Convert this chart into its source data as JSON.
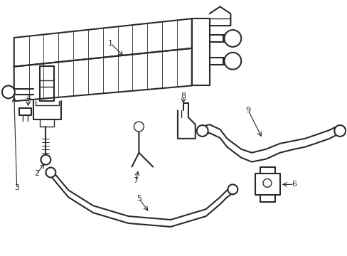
{
  "background_color": "#ffffff",
  "line_color": "#2a2a2a",
  "line_width": 1.0,
  "fig_width": 4.89,
  "fig_height": 3.6,
  "dpi": 100,
  "label_fontsize": 8.0
}
